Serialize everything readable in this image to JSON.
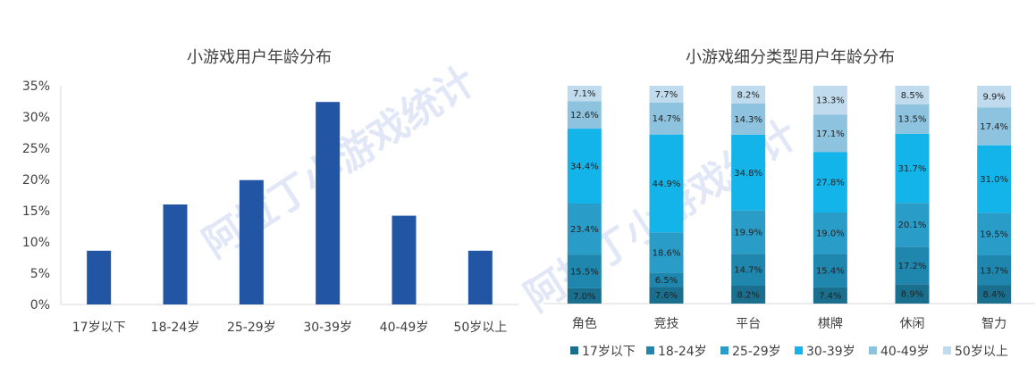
{
  "chart_data": [
    {
      "type": "bar",
      "title": "小游戏用户年龄分布",
      "categories": [
        "17岁以下",
        "18-24岁",
        "25-29岁",
        "30-39岁",
        "40-49岁",
        "50岁以上"
      ],
      "values": [
        8.6,
        16.0,
        19.9,
        32.4,
        14.2,
        8.6
      ],
      "ylim": [
        0,
        35
      ],
      "yticks": [
        "0%",
        "5%",
        "10%",
        "15%",
        "20%",
        "25%",
        "30%",
        "35%"
      ],
      "color": "#2255a4",
      "grid": false
    },
    {
      "type": "bar",
      "stacked": true,
      "title": "小游戏细分类型用户年龄分布",
      "categories": [
        "角色",
        "竞技",
        "平台",
        "棋牌",
        "休闲",
        "智力"
      ],
      "series": [
        {
          "name": "17岁以下",
          "color": "#1b6f8e",
          "values": [
            7.0,
            7.6,
            8.2,
            7.4,
            8.9,
            8.4
          ],
          "labels": [
            "7.0%",
            "7.6%",
            "8.2%",
            "7.4%",
            "8.9%",
            "8.4%"
          ]
        },
        {
          "name": "18-24岁",
          "color": "#1f86ad",
          "values": [
            15.5,
            6.5,
            14.7,
            15.4,
            17.2,
            13.7
          ],
          "labels": [
            "15.5%",
            "6.5%",
            "14.7%",
            "15.4%",
            "17.2%",
            "13.7%"
          ]
        },
        {
          "name": "25-29岁",
          "color": "#2a9cc8",
          "values": [
            23.4,
            18.6,
            19.9,
            19.0,
            20.1,
            19.5
          ],
          "labels": [
            "23.4%",
            "18.6%",
            "19.9%",
            "19.0%",
            "20.1%",
            "19.5%"
          ]
        },
        {
          "name": "30-39岁",
          "color": "#13b4ea",
          "values": [
            34.4,
            44.9,
            34.8,
            27.8,
            31.7,
            31.0
          ],
          "labels": [
            "34.4%",
            "44.9%",
            "34.8%",
            "27.8%",
            "31.7%",
            "31.0%"
          ]
        },
        {
          "name": "40-49岁",
          "color": "#8ec3df",
          "values": [
            12.6,
            14.7,
            14.3,
            17.1,
            13.5,
            17.4
          ],
          "labels": [
            "12.6%",
            "14.7%",
            "14.3%",
            "17.1%",
            "13.5%",
            "17.4%"
          ]
        },
        {
          "name": "50岁以上",
          "color": "#bfdbed",
          "values": [
            7.1,
            7.7,
            8.2,
            13.3,
            8.5,
            9.9
          ],
          "labels": [
            "7.1%",
            "7.7%",
            "8.2%",
            "13.3%",
            "8.5%",
            "9.9%"
          ]
        }
      ],
      "legend_position": "bottom"
    }
  ],
  "watermark": "阿拉丁小游戏统计"
}
